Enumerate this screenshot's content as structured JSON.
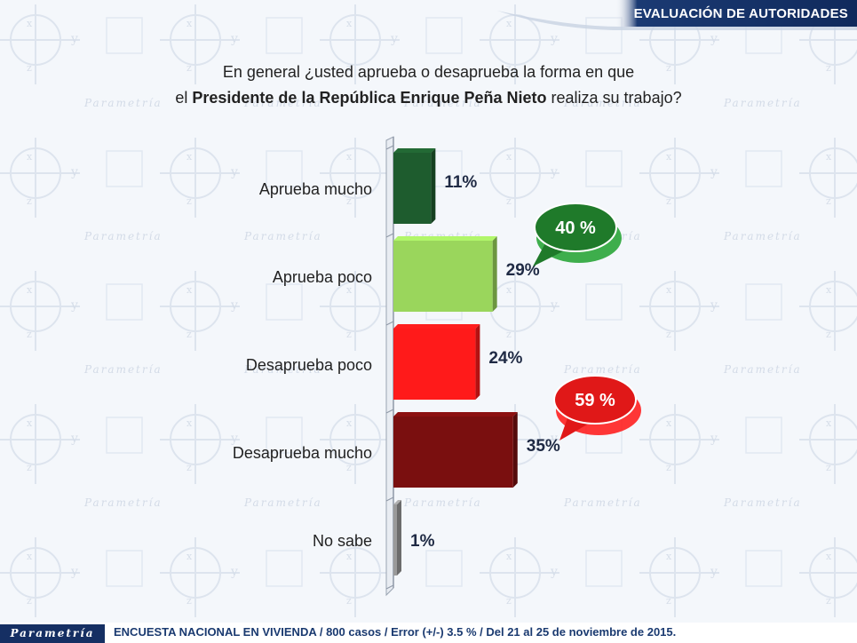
{
  "header": {
    "title": "EVALUACIÓN DE AUTORIDADES"
  },
  "question": {
    "line1": "En general ¿usted aprueba o desaprueba la forma en que",
    "line2_prefix": "el ",
    "line2_bold": "Presidente de la República Enrique Peña Nieto",
    "line2_suffix": " realiza su trabajo?"
  },
  "chart_data": {
    "type": "bar",
    "orientation": "horizontal",
    "categories": [
      "Aprueba mucho",
      "Aprueba poco",
      "Desaprueba poco",
      "Desaprueba mucho",
      "No sabe"
    ],
    "values": [
      11,
      29,
      24,
      35,
      1
    ],
    "value_labels": [
      "11%",
      "29%",
      "24%",
      "35%",
      "1%"
    ],
    "unit": "%",
    "xlim": [
      0,
      40
    ],
    "colors": [
      "#1e5c2e",
      "#9ad65c",
      "#ff1a1a",
      "#7a0f0f",
      "#9a9a9a"
    ],
    "annotations": [
      {
        "text": "40 %",
        "color": "#1f7a2a",
        "group": [
          "Aprueba mucho",
          "Aprueba poco"
        ]
      },
      {
        "text": "59 %",
        "color": "#e01818",
        "group": [
          "Desaprueba poco",
          "Desaprueba mucho"
        ]
      }
    ]
  },
  "watermark": {
    "brand": "Parametría"
  },
  "footer": {
    "logo": "Parametría",
    "text": "ENCUESTA NACIONAL EN VIVIENDA / 800 casos / Error (+/-) 3.5 % / Del 21 al 25 de noviembre de 2015."
  }
}
